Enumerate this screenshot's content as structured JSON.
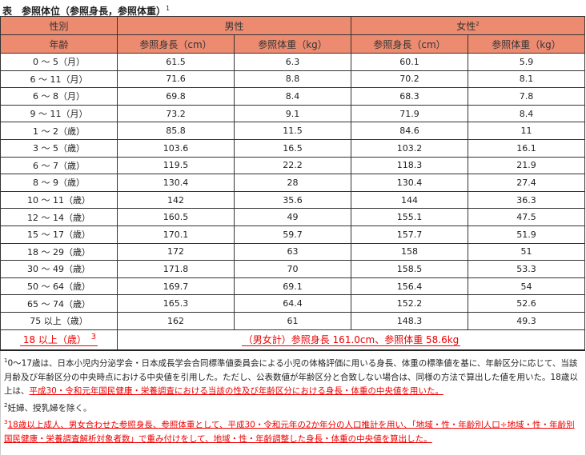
{
  "title": "表　参照体位（参照身長，参照体重）",
  "title_sup": "1",
  "header": {
    "sex": "性別",
    "male": "男性",
    "female": "女性",
    "female_sup": "2",
    "age": "年齢",
    "height_m": "参照身長（cm）",
    "weight_m": "参照体重（kg）",
    "height_f": "参照身長（cm）",
    "weight_f": "参照体重（kg）"
  },
  "rows": [
    [
      "0 ～ 5（月）",
      "61.5",
      "6.3",
      "60.1",
      "5.9"
    ],
    [
      "6 ～ 11（月）",
      "71.6",
      "8.8",
      "70.2",
      "8.1"
    ],
    [
      "6 ～ 8（月）",
      "69.8",
      "8.4",
      "68.3",
      "7.8"
    ],
    [
      "9 ～ 11（月）",
      "73.2",
      "9.1",
      "71.9",
      "8.4"
    ],
    [
      "1 ～ 2（歳）",
      "85.8",
      "11.5",
      "84.6",
      "11"
    ],
    [
      "3 ～ 5（歳）",
      "103.6",
      "16.5",
      "103.2",
      "16.1"
    ],
    [
      "6 ～ 7（歳）",
      "119.5",
      "22.2",
      "118.3",
      "21.9"
    ],
    [
      "8 ～ 9（歳）",
      "130.4",
      "28",
      "130.4",
      "27.4"
    ],
    [
      "10 ～ 11（歳）",
      "142",
      "35.6",
      "144",
      "36.3"
    ],
    [
      "12 ～ 14（歳）",
      "160.5",
      "49",
      "155.1",
      "47.5"
    ],
    [
      "15 ～ 17（歳）",
      "170.1",
      "59.7",
      "157.7",
      "51.9"
    ],
    [
      "18 ～ 29（歳）",
      "172",
      "63",
      "158",
      "51"
    ],
    [
      "30 ～ 49（歳）",
      "171.8",
      "70",
      "158.5",
      "53.3"
    ],
    [
      "50 ～ 64（歳）",
      "169.7",
      "69.1",
      "156.4",
      "54"
    ],
    [
      "65 ～ 74（歳）",
      "165.3",
      "64.4",
      "152.2",
      "52.6"
    ],
    [
      "75 以上（歳）",
      "162",
      "61",
      "148.3",
      "49.3"
    ]
  ],
  "total": {
    "label": "18 以上（歳）",
    "sup": "3",
    "value": "（男女計）参照身長 161.0cm、参照体重 58.6kg"
  },
  "notes": {
    "n1_sup": "1",
    "n1_text": "0～17歳は、日本小児内分泌学会・日本成長学会合同標準値委員会による小児の体格評価に用いる身長、体重の標準値を基に、年齢区分に応じて、当該月齢及び年齢区分の中央時点における中央値を引用した。ただし、公表数値が年齢区分と合致しない場合は、同様の方法で算出した値を用いた。18歳以上は、",
    "n1_red": "平成30・令和元年国民健康・栄養調査における当該の性及び年齢区分における身長・体重の中央値を用いた。",
    "n2_sup": "2",
    "n2_text": "妊婦、授乳婦を除く。",
    "n3_sup": "3",
    "n3_red": "18歳以上成人、男女合わせた参照身長、参照体重として、平成30・令和元年の2か年分の人口推計を用い、「地域・性・年齢別人口÷地域・性・年齢別 国民健康・栄養調査解析対象者数」で重み付けをして、地域・性・年齢調整した身長・体重の中央値を算出した。"
  },
  "colors": {
    "header_bg": "#ec8b70",
    "accent_red": "#e00000"
  }
}
